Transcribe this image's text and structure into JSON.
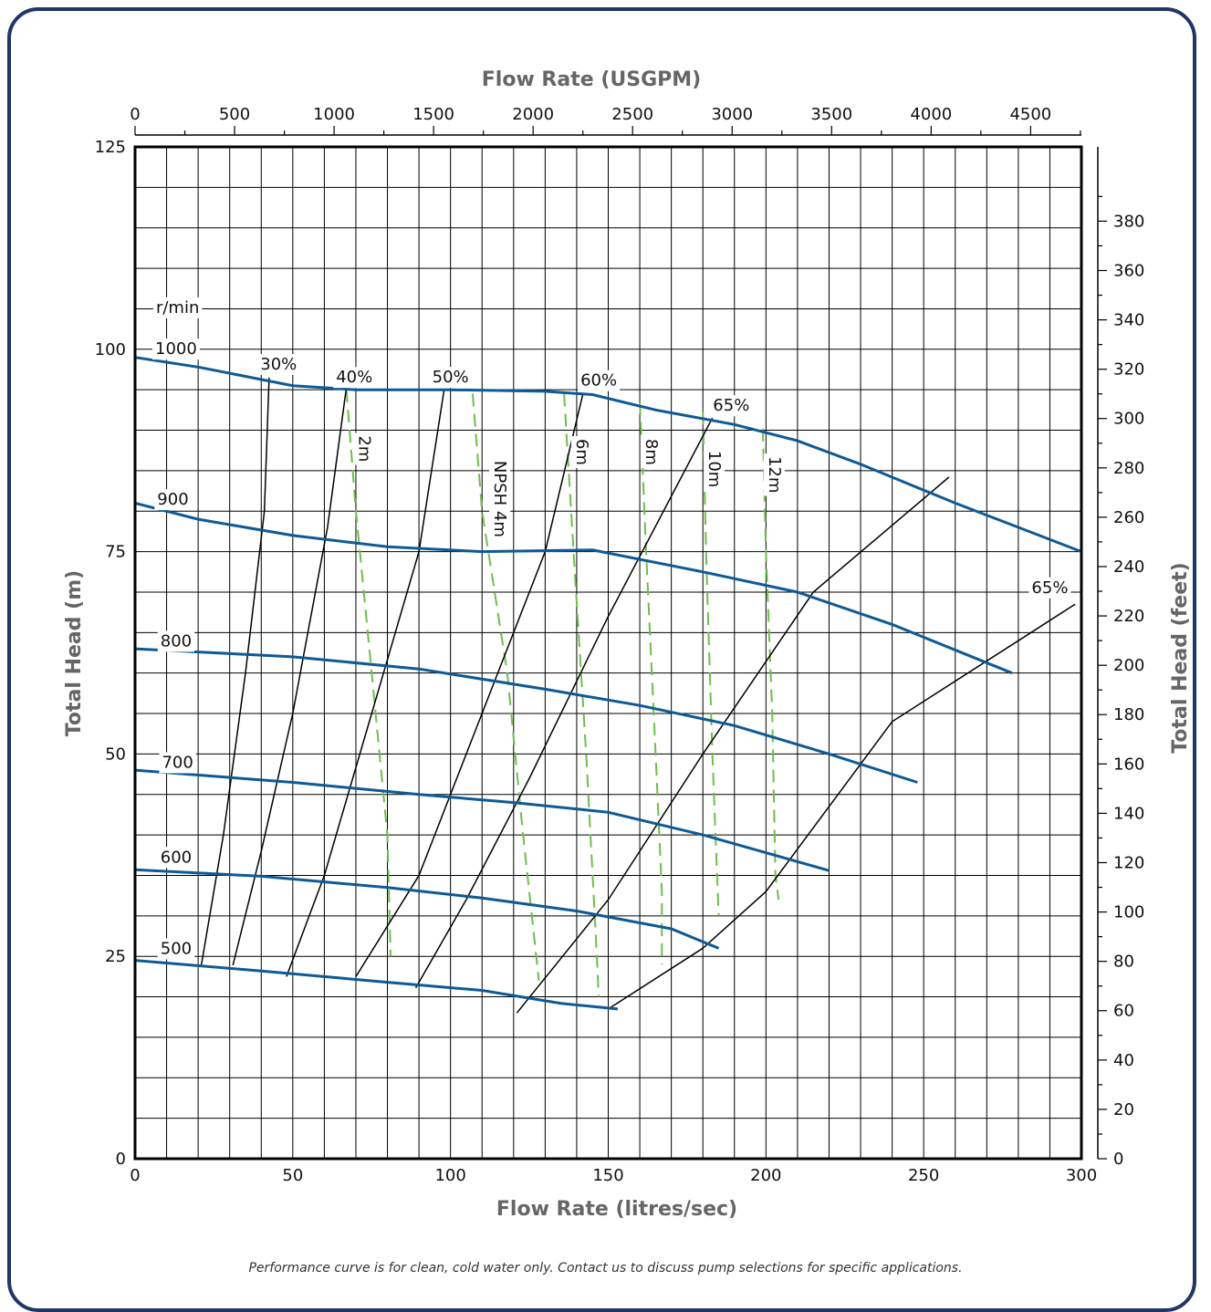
{
  "chart_data": {
    "type": "line",
    "xlabel_bottom": "Flow Rate (litres/sec)",
    "xlabel_top": "Flow Rate (USGPM)",
    "ylabel_left": "Total Head (m)",
    "ylabel_right": "Total Head (feet)",
    "xlim": [
      0,
      300
    ],
    "ylim": [
      0,
      125
    ],
    "x_ticks": [
      "0",
      "50",
      "100",
      "150",
      "200",
      "250",
      "300"
    ],
    "y_ticks": [
      "0",
      "25",
      "50",
      "75",
      "100",
      "125"
    ],
    "top_ticks": [
      "0",
      "500",
      "1000",
      "1500",
      "2000",
      "2500",
      "3000",
      "3500",
      "4000",
      "4500"
    ],
    "right_ticks": [
      "0",
      "20",
      "40",
      "60",
      "80",
      "100",
      "120",
      "140",
      "160",
      "180",
      "200",
      "220",
      "240",
      "260",
      "280",
      "300",
      "320",
      "340",
      "360",
      "380"
    ],
    "colors": {
      "speed": "#0e5a96",
      "efficiency": "#000000",
      "npsh": "#6cbf4a",
      "frame": "#1f3566"
    },
    "speed_unit_label": "r/min",
    "speed_curves": [
      {
        "name": "1000",
        "points": [
          [
            0,
            99
          ],
          [
            20,
            97.8
          ],
          [
            50,
            95.5
          ],
          [
            70,
            95
          ],
          [
            100,
            95
          ],
          [
            130,
            94.8
          ],
          [
            145,
            94.4
          ],
          [
            165,
            92.5
          ],
          [
            190,
            90.7
          ],
          [
            210,
            88.7
          ],
          [
            230,
            85.8
          ],
          [
            260,
            81
          ],
          [
            300,
            75
          ]
        ]
      },
      {
        "name": "900",
        "points": [
          [
            0,
            81
          ],
          [
            20,
            79
          ],
          [
            50,
            77
          ],
          [
            80,
            75.6
          ],
          [
            110,
            75
          ],
          [
            145,
            75.2
          ],
          [
            180,
            72.5
          ],
          [
            210,
            70
          ],
          [
            240,
            66
          ],
          [
            278,
            60
          ]
        ]
      },
      {
        "name": "800",
        "points": [
          [
            0,
            63
          ],
          [
            50,
            62
          ],
          [
            90,
            60.5
          ],
          [
            130,
            58
          ],
          [
            160,
            56
          ],
          [
            190,
            53.5
          ],
          [
            220,
            50
          ],
          [
            248,
            46.5
          ]
        ]
      },
      {
        "name": "700",
        "points": [
          [
            0,
            48
          ],
          [
            50,
            46.5
          ],
          [
            90,
            45
          ],
          [
            120,
            44
          ],
          [
            150,
            42.8
          ],
          [
            180,
            40
          ],
          [
            220,
            35.6
          ]
        ]
      },
      {
        "name": "600",
        "points": [
          [
            0,
            35.7
          ],
          [
            40,
            34.9
          ],
          [
            80,
            33.5
          ],
          [
            110,
            32.2
          ],
          [
            140,
            30.6
          ],
          [
            170,
            28.4
          ],
          [
            185,
            26
          ]
        ]
      },
      {
        "name": "500",
        "points": [
          [
            0,
            24.5
          ],
          [
            40,
            23.2
          ],
          [
            80,
            21.8
          ],
          [
            110,
            20.8
          ],
          [
            135,
            19.2
          ],
          [
            153,
            18.5
          ]
        ]
      }
    ],
    "efficiency_curves": [
      {
        "name": "30%",
        "points": [
          [
            21,
            23.9
          ],
          [
            28,
            40
          ],
          [
            35,
            60
          ],
          [
            41,
            80
          ],
          [
            42.5,
            96.5
          ]
        ]
      },
      {
        "name": "",
        "points": [
          [
            31,
            23.9
          ],
          [
            40,
            38
          ],
          [
            50,
            55
          ],
          [
            61,
            78
          ],
          [
            67,
            95.3
          ]
        ]
      },
      {
        "name": "40%",
        "points": [
          [
            48,
            22.5
          ],
          [
            60,
            35
          ],
          [
            75,
            55
          ],
          [
            90,
            75
          ],
          [
            98,
            95.1
          ]
        ]
      },
      {
        "name": "",
        "points": [
          [
            70,
            22.5
          ],
          [
            90,
            35
          ],
          [
            110,
            55
          ],
          [
            130,
            75
          ],
          [
            142,
            94.5
          ]
        ]
      },
      {
        "name": "50%",
        "points": [
          [
            89,
            21.1
          ],
          [
            105,
            32
          ],
          [
            125,
            47
          ],
          [
            150,
            67
          ],
          [
            183,
            91.5
          ]
        ]
      },
      {
        "name": "60%",
        "points": [
          [
            121,
            18
          ],
          [
            150,
            32
          ],
          [
            180,
            50
          ],
          [
            215,
            70
          ],
          [
            258,
            84.2
          ]
        ]
      },
      {
        "name": "65%",
        "points": [
          [
            150,
            18.5
          ],
          [
            180,
            26
          ],
          [
            200,
            33
          ],
          [
            240,
            54
          ],
          [
            298,
            68.5
          ]
        ]
      }
    ],
    "npsh_curves": [
      {
        "name": "2m",
        "points": [
          [
            67,
            95
          ],
          [
            70,
            80
          ],
          [
            75,
            60
          ],
          [
            80,
            40
          ],
          [
            81,
            25
          ]
        ]
      },
      {
        "name": "NPSH 4m",
        "points": [
          [
            107,
            94.5
          ],
          [
            110,
            80
          ],
          [
            118,
            60
          ],
          [
            123,
            40
          ],
          [
            128,
            22
          ]
        ]
      },
      {
        "name": "6m",
        "points": [
          [
            136,
            94.5
          ],
          [
            139,
            75
          ],
          [
            143,
            50
          ],
          [
            146,
            28
          ],
          [
            147,
            20
          ]
        ]
      },
      {
        "name": "8m",
        "points": [
          [
            160,
            93.5
          ],
          [
            162,
            75
          ],
          [
            165,
            50
          ],
          [
            167,
            33
          ],
          [
            167,
            24
          ]
        ]
      },
      {
        "name": "10m",
        "points": [
          [
            180,
            92.3
          ],
          [
            181,
            75
          ],
          [
            183,
            50
          ],
          [
            185,
            30
          ]
        ]
      },
      {
        "name": "12m",
        "points": [
          [
            199,
            90.2
          ],
          [
            200,
            75
          ],
          [
            202,
            55
          ],
          [
            203,
            35
          ],
          [
            204,
            32
          ]
        ]
      }
    ],
    "efficiency_labels": [
      "30%",
      "40%",
      "50%",
      "60%",
      "65%",
      "65%"
    ],
    "speed_labels": [
      "1000",
      "900",
      "800",
      "700",
      "600",
      "500"
    ],
    "npsh_labels": [
      "2m",
      "NPSH 4m",
      "6m",
      "8m",
      "10m",
      "12m"
    ]
  },
  "footnote": "Performance curve is for clean, cold water only. Contact us to discuss pump selections for specific applications."
}
